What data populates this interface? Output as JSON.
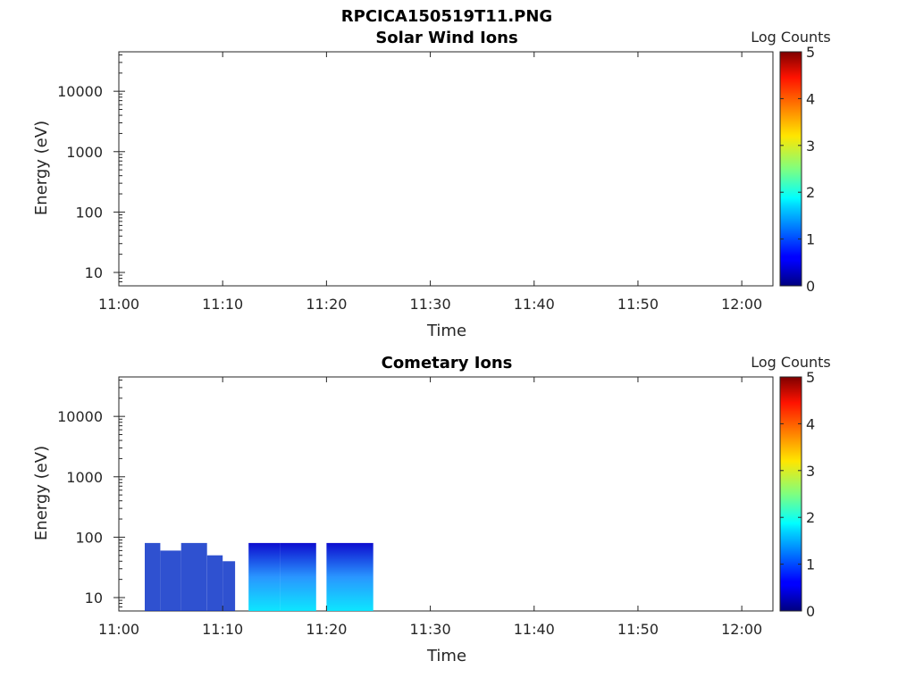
{
  "figure": {
    "title": "RPCICA150519T11.PNG"
  },
  "chart_data": [
    {
      "type": "heatmap",
      "title": "Solar Wind Ions",
      "xlabel": "Time",
      "ylabel": "Energy (eV)",
      "x_ticks": [
        "11:00",
        "11:10",
        "11:20",
        "11:30",
        "11:40",
        "11:50",
        "12:00"
      ],
      "xlim_minutes": [
        0,
        63
      ],
      "y_ticks": [
        "10",
        "100",
        "1000",
        "10000"
      ],
      "y_scale": "log",
      "ylim": [
        6,
        45000
      ],
      "colorbar": {
        "label": "Log Counts",
        "ticks": [
          "0",
          "1",
          "2",
          "3",
          "4",
          "5"
        ],
        "range": [
          0,
          5
        ],
        "colormap": "jet"
      },
      "blocks": []
    },
    {
      "type": "heatmap",
      "title": "Cometary Ions",
      "xlabel": "Time",
      "ylabel": "Energy (eV)",
      "x_ticks": [
        "11:00",
        "11:10",
        "11:20",
        "11:30",
        "11:40",
        "11:50",
        "12:00"
      ],
      "xlim_minutes": [
        0,
        63
      ],
      "y_ticks": [
        "10",
        "100",
        "1000",
        "10000"
      ],
      "y_scale": "log",
      "ylim": [
        6,
        45000
      ],
      "colorbar": {
        "label": "Log Counts",
        "ticks": [
          "0",
          "1",
          "2",
          "3",
          "4",
          "5"
        ],
        "range": [
          0,
          5
        ],
        "colormap": "jet"
      },
      "energy_max": 80,
      "blocks": [
        {
          "t0": 2.5,
          "t1": 4.0,
          "energy_top": 80,
          "intensity": 0.6
        },
        {
          "t0": 4.0,
          "t1": 6.0,
          "energy_top": 60,
          "intensity": 0.5
        },
        {
          "t0": 6.0,
          "t1": 8.5,
          "energy_top": 80,
          "intensity": 0.5
        },
        {
          "t0": 8.5,
          "t1": 10.0,
          "energy_top": 50,
          "intensity": 0.4
        },
        {
          "t0": 10.0,
          "t1": 11.2,
          "energy_top": 40,
          "intensity": 0.5
        },
        {
          "t0": 12.5,
          "t1": 15.5,
          "energy_top": 80,
          "intensity": 1.7
        },
        {
          "t0": 15.5,
          "t1": 19.0,
          "energy_top": 80,
          "intensity": 1.2
        },
        {
          "t0": 20.0,
          "t1": 24.5,
          "energy_top": 80,
          "intensity": 1.5
        }
      ]
    }
  ]
}
